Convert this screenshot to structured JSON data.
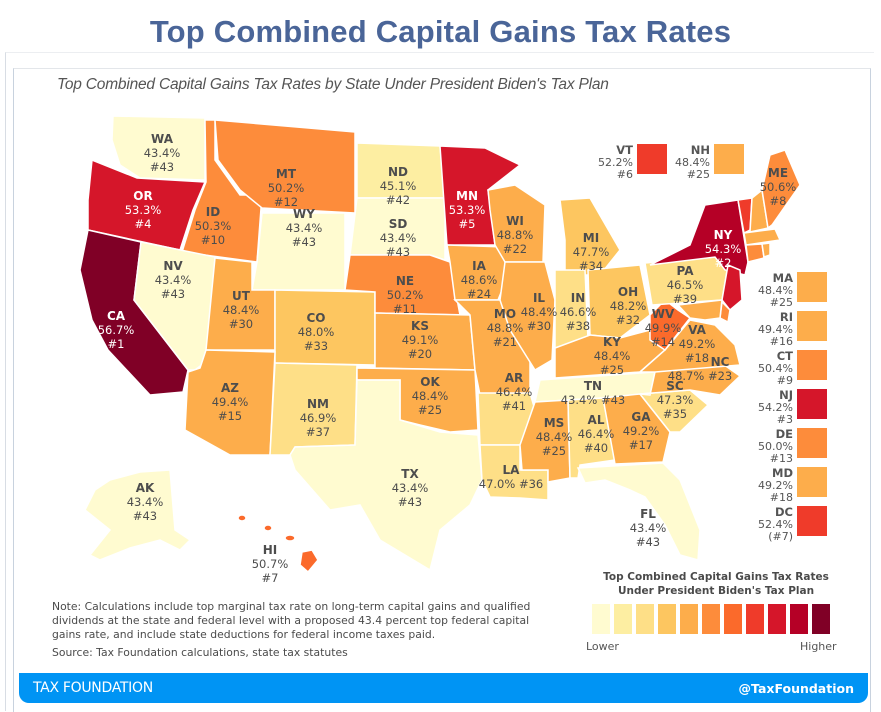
{
  "page_title": "Top Combined Capital Gains Tax Rates",
  "subtitle": "Top Combined Capital Gains Tax Rates by State Under President Biden's Tax Plan",
  "palette": [
    "#fffbd0",
    "#fdeea2",
    "#fedf87",
    "#fdc660",
    "#fdad4b",
    "#fd8c3b",
    "#fb6a2b",
    "#ef3b2a",
    "#d5162a",
    "#b50026",
    "#800026"
  ],
  "states": {
    "WA": {
      "abbr": "WA",
      "rate": "43.4%",
      "rank": "#43",
      "color": "#fffbd0"
    },
    "OR": {
      "abbr": "OR",
      "rate": "53.3%",
      "rank": "#4",
      "color": "#d5162a"
    },
    "CA": {
      "abbr": "CA",
      "rate": "56.7%",
      "rank": "#1",
      "color": "#800026"
    },
    "ID": {
      "abbr": "ID",
      "rate": "50.3%",
      "rank": "#10",
      "color": "#fd8c3b"
    },
    "MT": {
      "abbr": "MT",
      "rate": "50.2%",
      "rank": "#12",
      "color": "#fd8c3b"
    },
    "WY": {
      "abbr": "WY",
      "rate": "43.4%",
      "rank": "#43",
      "color": "#fffbd0"
    },
    "NV": {
      "abbr": "NV",
      "rate": "43.4%",
      "rank": "#43",
      "color": "#fffbd0"
    },
    "UT": {
      "abbr": "UT",
      "rate": "48.4%",
      "rank": "#30",
      "color": "#fdad4b"
    },
    "CO": {
      "abbr": "CO",
      "rate": "48.0%",
      "rank": "#33",
      "color": "#fdc660"
    },
    "AZ": {
      "abbr": "AZ",
      "rate": "49.4%",
      "rank": "#15",
      "color": "#fdad4b"
    },
    "NM": {
      "abbr": "NM",
      "rate": "46.9%",
      "rank": "#37",
      "color": "#fedf87"
    },
    "ND": {
      "abbr": "ND",
      "rate": "45.1%",
      "rank": "#42",
      "color": "#fdeea2"
    },
    "SD": {
      "abbr": "SD",
      "rate": "43.4%",
      "rank": "#43",
      "color": "#fffbd0"
    },
    "NE": {
      "abbr": "NE",
      "rate": "50.2%",
      "rank": "#11",
      "color": "#fd8c3b"
    },
    "KS": {
      "abbr": "KS",
      "rate": "49.1%",
      "rank": "#20",
      "color": "#fdad4b"
    },
    "OK": {
      "abbr": "OK",
      "rate": "48.4%",
      "rank": "#25",
      "color": "#fdad4b"
    },
    "TX": {
      "abbr": "TX",
      "rate": "43.4%",
      "rank": "#43",
      "color": "#fffbd0"
    },
    "MN": {
      "abbr": "MN",
      "rate": "53.3%",
      "rank": "#5",
      "color": "#d5162a"
    },
    "IA": {
      "abbr": "IA",
      "rate": "48.6%",
      "rank": "#24",
      "color": "#fdad4b"
    },
    "MO": {
      "abbr": "MO",
      "rate": "48.8%",
      "rank": "#21",
      "color": "#fdad4b"
    },
    "AR": {
      "abbr": "AR",
      "rate": "46.4%",
      "rank": "#41",
      "color": "#fedf87"
    },
    "LA": {
      "abbr": "LA",
      "rate": "47.0%",
      "rank": "#36",
      "color": "#fedf87"
    },
    "WI": {
      "abbr": "WI",
      "rate": "48.8%",
      "rank": "#22",
      "color": "#fdad4b"
    },
    "IL": {
      "abbr": "IL",
      "rate": "48.4%",
      "rank": "#30",
      "color": "#fdad4b"
    },
    "MI": {
      "abbr": "MI",
      "rate": "47.7%",
      "rank": "#34",
      "color": "#fdc660"
    },
    "IN": {
      "abbr": "IN",
      "rate": "46.6%",
      "rank": "#38",
      "color": "#fedf87"
    },
    "OH": {
      "abbr": "OH",
      "rate": "48.2%",
      "rank": "#32",
      "color": "#fdc660"
    },
    "KY": {
      "abbr": "KY",
      "rate": "48.4%",
      "rank": "#25",
      "color": "#fdad4b"
    },
    "TN": {
      "abbr": "TN",
      "rate": "43.4%",
      "rank": "#43",
      "color": "#fffbd0"
    },
    "MS": {
      "abbr": "MS",
      "rate": "48.4%",
      "rank": "#25",
      "color": "#fdad4b"
    },
    "AL": {
      "abbr": "AL",
      "rate": "46.4%",
      "rank": "#40",
      "color": "#fedf87"
    },
    "GA": {
      "abbr": "GA",
      "rate": "49.2%",
      "rank": "#17",
      "color": "#fdad4b"
    },
    "FL": {
      "abbr": "FL",
      "rate": "43.4%",
      "rank": "#43",
      "color": "#fffbd0"
    },
    "SC": {
      "abbr": "SC",
      "rate": "47.3%",
      "rank": "#35",
      "color": "#fedf87"
    },
    "NC": {
      "abbr": "NC",
      "rate": "48.7%",
      "rank": "#23",
      "color": "#fdad4b"
    },
    "VA": {
      "abbr": "VA",
      "rate": "49.2%",
      "rank": "#18",
      "color": "#fdad4b"
    },
    "WV": {
      "abbr": "WV",
      "rate": "49.9%",
      "rank": "#14",
      "color": "#fb6a2b"
    },
    "PA": {
      "abbr": "PA",
      "rate": "46.5%",
      "rank": "#39",
      "color": "#fedf87"
    },
    "NY": {
      "abbr": "NY",
      "rate": "54.3%",
      "rank": "#2",
      "color": "#b50026"
    },
    "ME": {
      "abbr": "ME",
      "rate": "50.6%",
      "rank": "#8",
      "color": "#fd8c3b"
    },
    "AK": {
      "abbr": "AK",
      "rate": "43.4%",
      "rank": "#43",
      "color": "#fffbd0"
    },
    "HI": {
      "abbr": "HI",
      "rate": "50.7%",
      "rank": "#7",
      "color": "#fb6a2b"
    }
  },
  "callouts": {
    "VT": {
      "abbr": "VT",
      "rate": "52.2%",
      "rank": "#6",
      "color": "#ef3b2a"
    },
    "NH": {
      "abbr": "NH",
      "rate": "48.4%",
      "rank": "#25",
      "color": "#fdad4b"
    },
    "MA": {
      "abbr": "MA",
      "rate": "48.4%",
      "rank": "#25",
      "color": "#fdad4b"
    },
    "RI": {
      "abbr": "RI",
      "rate": "49.4%",
      "rank": "#16",
      "color": "#fdad4b"
    },
    "CT": {
      "abbr": "CT",
      "rate": "50.4%",
      "rank": "#9",
      "color": "#fd8c3b"
    },
    "NJ": {
      "abbr": "NJ",
      "rate": "54.2%",
      "rank": "#3",
      "color": "#d5162a"
    },
    "DE": {
      "abbr": "DE",
      "rate": "50.0%",
      "rank": "#13",
      "color": "#fd8c3b"
    },
    "MD": {
      "abbr": "MD",
      "rate": "49.2%",
      "rank": "#18",
      "color": "#fdad4b"
    },
    "DC": {
      "abbr": "DC",
      "rate": "52.4%",
      "rank": "(#7)",
      "color": "#ef3b2a"
    }
  },
  "legend": {
    "title_line1": "Top Combined Capital Gains Tax Rates",
    "title_line2": "Under President Biden's Tax Plan",
    "lower": "Lower",
    "higher": "Higher"
  },
  "note": "Note: Calculations include top marginal tax rate on long-term capital gains and qualified dividends at the state and federal level with a proposed 43.4 percent top federal capital gains rate, and include state deductions for federal income taxes paid.",
  "source": "Source: Tax Foundation calculations, state tax statutes",
  "footer": {
    "brand": "TAX FOUNDATION",
    "handle": "@TaxFoundation"
  }
}
